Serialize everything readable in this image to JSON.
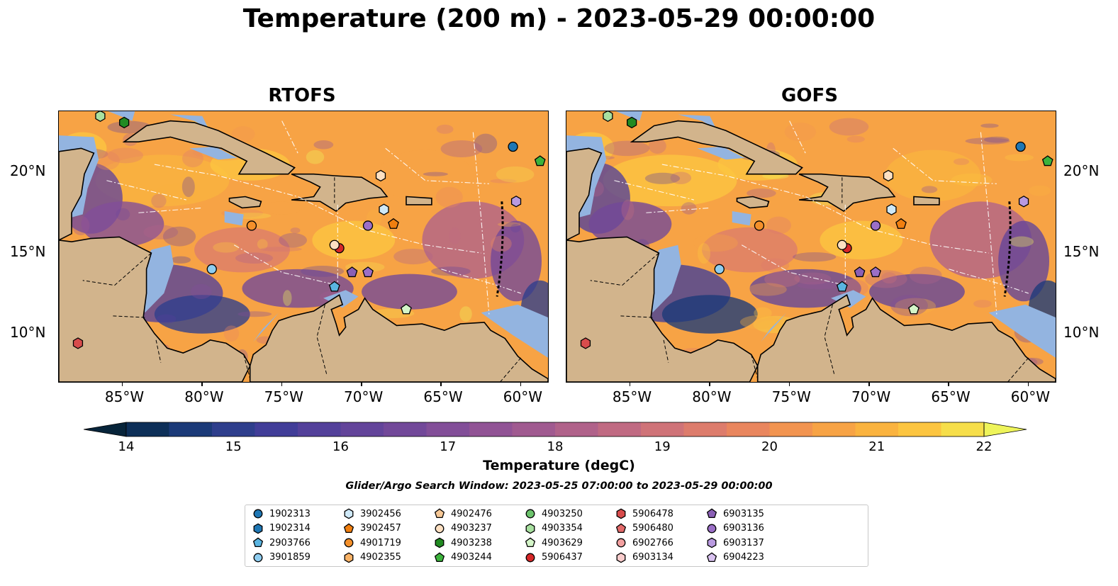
{
  "title": "Temperature (200 m) - 2023-05-29 00:00:00",
  "panels": [
    {
      "title": "RTOFS",
      "field": "rtofs"
    },
    {
      "title": "GOFS",
      "field": "gofs"
    }
  ],
  "lon_ticks": [
    "85°W",
    "80°W",
    "75°W",
    "70°W",
    "65°W",
    "60°W"
  ],
  "lon_values": [
    -85,
    -80,
    -75,
    -70,
    -65,
    -60
  ],
  "lat_ticks": [
    "20°N",
    "15°N",
    "10°N"
  ],
  "lat_values": [
    20,
    15,
    10
  ],
  "extent": {
    "lon": [
      -89,
      -58.3
    ],
    "lat": [
      7,
      23.8
    ]
  },
  "colorbar": {
    "ticks": [
      "14",
      "15",
      "16",
      "17",
      "18",
      "19",
      "20",
      "21",
      "22"
    ],
    "levels": [
      14,
      22
    ],
    "extend": "both",
    "label": "Temperature (degC)",
    "colors": [
      "#07243a",
      "#0d2f58",
      "#1b3a78",
      "#2e3e8c",
      "#413d98",
      "#53409a",
      "#63449a",
      "#724899",
      "#824e98",
      "#915395",
      "#a05a90",
      "#b0628a",
      "#c06a82",
      "#cf7378",
      "#dd7c6c",
      "#e9865e",
      "#f29450",
      "#f7a345",
      "#fab33f",
      "#fcc540",
      "#f6de4a",
      "#eef45a"
    ]
  },
  "search_window": "Glider/Argo Search Window: 2023-05-25 07:00:00 to 2023-05-29 00:00:00",
  "floats": [
    {
      "id": "1902313",
      "marker": "circle",
      "color": "#1f77b4",
      "lon": -60.5,
      "lat": 21.6
    },
    {
      "id": "1902314",
      "marker": "hexagon",
      "color": "#1f77b4",
      "lon": null,
      "lat": null
    },
    {
      "id": "2903766",
      "marker": "pentagon",
      "color": "#5ab4e0",
      "lon": -71.7,
      "lat": 12.9
    },
    {
      "id": "3901859",
      "marker": "circle",
      "color": "#8fcdf0",
      "lon": -79.4,
      "lat": 14.0
    },
    {
      "id": "3902456",
      "marker": "hexagon",
      "color": "#cfe9f8",
      "lon": -68.6,
      "lat": 17.7
    },
    {
      "id": "3902457",
      "marker": "pentagon",
      "color": "#f07f10",
      "lon": -68.0,
      "lat": 16.8
    },
    {
      "id": "4901719",
      "marker": "circle",
      "color": "#f4902a",
      "lon": null,
      "lat": null
    },
    {
      "id": "4902355",
      "marker": "hexagon",
      "color": "#f8b266",
      "lon": null,
      "lat": null
    },
    {
      "id": "4902476",
      "marker": "pentagon",
      "color": "#f7c896",
      "lon": null,
      "lat": null
    },
    {
      "id": "4903237",
      "marker": "circle",
      "color": "#fde0c2",
      "lon": null,
      "lat": null
    },
    {
      "id": "4903238",
      "marker": "hexagon",
      "color": "#228b22",
      "lon": null,
      "lat": null
    },
    {
      "id": "4903244",
      "marker": "pentagon",
      "color": "#3cb33c",
      "lon": -58.8,
      "lat": 20.7
    },
    {
      "id": "4903250",
      "marker": "circle",
      "color": "#6cc36c",
      "lon": null,
      "lat": null
    },
    {
      "id": "4903354",
      "marker": "hexagon",
      "color": "#a8e0a0",
      "lon": -86.4,
      "lat": 23.5
    },
    {
      "id": "4903629",
      "marker": "pentagon",
      "color": "#d4f5c8",
      "lon": -67.2,
      "lat": 11.5
    },
    {
      "id": "5906437",
      "marker": "circle",
      "color": "#d62728",
      "lon": -71.4,
      "lat": 15.3
    },
    {
      "id": "5906478",
      "marker": "hexagon",
      "color": "#d84c4c",
      "lon": -87.8,
      "lat": 9.4
    },
    {
      "id": "5906480",
      "marker": "pentagon",
      "color": "#e36a6a",
      "lon": null,
      "lat": null
    },
    {
      "id": "6902766",
      "marker": "circle",
      "color": "#f2a0a0",
      "lon": null,
      "lat": null
    },
    {
      "id": "6903134",
      "marker": "hexagon",
      "color": "#f9cccc",
      "lon": null,
      "lat": null
    },
    {
      "id": "6903135",
      "marker": "pentagon",
      "color": "#8a5fb5",
      "lon": -70.6,
      "lat": 13.8
    },
    {
      "id": "6903136",
      "marker": "circle",
      "color": "#9b6fc7",
      "lon": -69.6,
      "lat": 16.7
    },
    {
      "id": "6903137",
      "marker": "hexagon",
      "color": "#b99ae0",
      "lon": -60.3,
      "lat": 18.2
    },
    {
      "id": "6904223",
      "marker": "pentagon",
      "color": "#d9c2f0",
      "lon": null,
      "lat": null
    }
  ],
  "extra_markers": [
    {
      "marker": "circle",
      "color": "#f4902a",
      "lon": -76.9,
      "lat": 16.7
    },
    {
      "marker": "circle",
      "color": "#fde0c2",
      "lon": -71.7,
      "lat": 15.5
    },
    {
      "marker": "hexagon",
      "color": "#fde0c2",
      "lon": -68.8,
      "lat": 19.8
    },
    {
      "marker": "pentagon",
      "color": "#9b6fc7",
      "lon": -69.6,
      "lat": 13.8
    },
    {
      "marker": "hexagon",
      "color": "#228b22",
      "lon": -84.9,
      "lat": 23.1
    }
  ],
  "land_color": "#d2b48c",
  "shelf_color": "#93b4e0"
}
